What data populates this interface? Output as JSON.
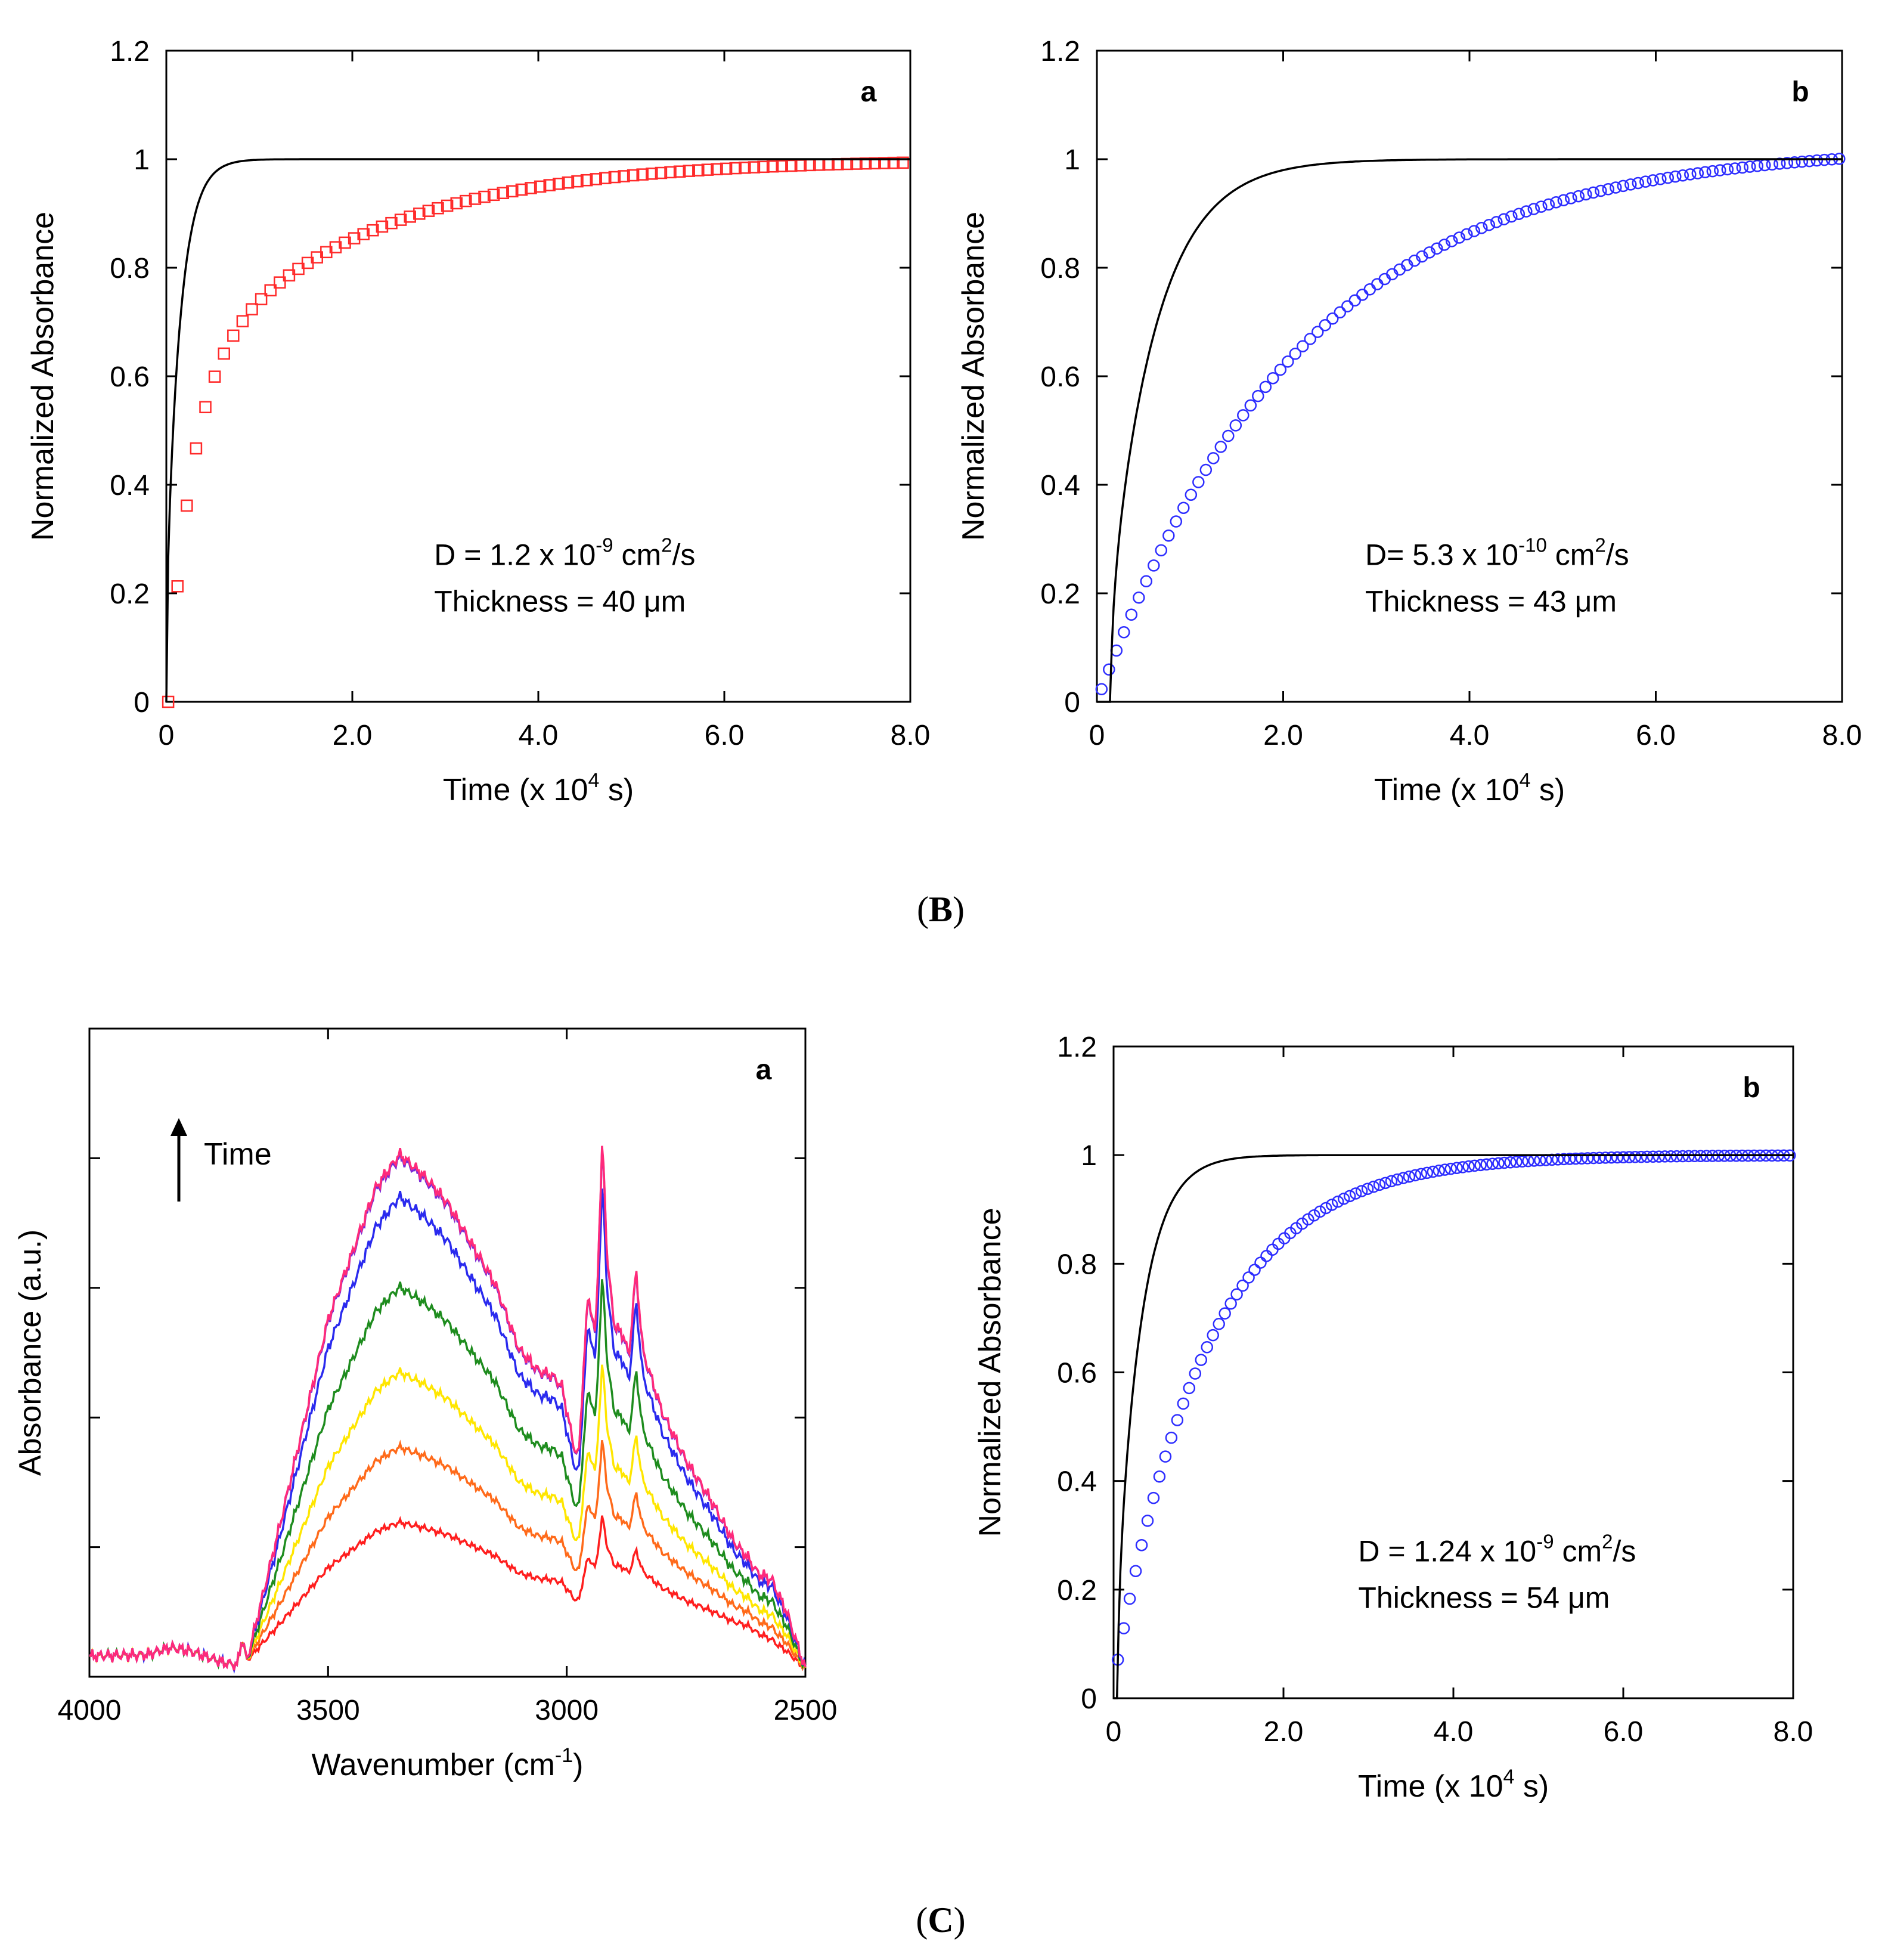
{
  "figure": {
    "captions": [
      "(B)",
      "(C)"
    ],
    "caption_parts": [
      {
        "open": "(",
        "letter": "B",
        "close": ")"
      },
      {
        "open": "(",
        "letter": "C",
        "close": ")"
      }
    ]
  },
  "chart_data": [
    {
      "id": "B-a",
      "type": "scatter",
      "panel_label": "a",
      "xlabel": "Time (x 10",
      "xlabel_exp": "4",
      "xlabel_tail": " s)",
      "ylabel": "Normalized Absorbance",
      "xlim": [
        0,
        8
      ],
      "ylim": [
        0,
        1.2
      ],
      "x_ticks": [
        0,
        2,
        4,
        6,
        8
      ],
      "x_tick_labels": [
        "0",
        "2.0",
        "4.0",
        "6.0",
        "8.0"
      ],
      "y_ticks": [
        0,
        0.2,
        0.4,
        0.6,
        0.8,
        1,
        1.2
      ],
      "y_tick_labels": [
        "0",
        "0.2",
        "0.4",
        "0.6",
        "0.8",
        "1",
        "1.2"
      ],
      "annotation": {
        "line1_pre": "D = 1.2 x 10",
        "line1_exp1": "-9",
        "line1_mid": " cm",
        "line1_exp2": "2",
        "line1_post": "/s",
        "line2": "Thickness = 40 μm"
      },
      "series": [
        {
          "name": "data",
          "kind": "markers",
          "marker": "square",
          "color": "#ff2a2a",
          "model": {
            "form": "biexp",
            "a": 0.58,
            "k1": 4.0,
            "k2": 0.53,
            "lag": 0.02,
            "tail": 0.007
          },
          "x_start": 0.02,
          "x_end": 8.0,
          "dx": 0.1
        },
        {
          "name": "fit",
          "kind": "line",
          "color": "#000000",
          "model": {
            "form": "sigmoid",
            "D": 0.85,
            "lag": 0.0,
            "n": 3.2
          }
        }
      ]
    },
    {
      "id": "B-b",
      "type": "scatter",
      "panel_label": "b",
      "xlabel": "Time (x 10",
      "xlabel_exp": "4",
      "xlabel_tail": " s)",
      "ylabel": "Normalized Absorbance",
      "xlim": [
        0,
        8
      ],
      "ylim": [
        0,
        1.2
      ],
      "x_ticks": [
        0,
        2,
        4,
        6,
        8
      ],
      "x_tick_labels": [
        "0",
        "2.0",
        "4.0",
        "6.0",
        "8.0"
      ],
      "y_ticks": [
        0,
        0.2,
        0.4,
        0.6,
        0.8,
        1,
        1.2
      ],
      "y_tick_labels": [
        "0",
        "0.2",
        "0.4",
        "0.6",
        "0.8",
        "1",
        "1.2"
      ],
      "annotation": {
        "line1_pre": "D= 5.3 x 10",
        "line1_exp1": "-10",
        "line1_mid": " cm",
        "line1_exp2": "2",
        "line1_post": "/s",
        "line2": "Thickness = 43 μm"
      },
      "series": [
        {
          "name": "data",
          "kind": "markers",
          "marker": "circle",
          "color": "#2d2dff",
          "model": {
            "form": "exp",
            "k": 0.46,
            "lag": 0.0,
            "scale": 1.027
          },
          "x_start": 0.05,
          "x_end": 8.0,
          "dx": 0.08
        },
        {
          "name": "fit",
          "kind": "line",
          "color": "#000000",
          "model": {
            "form": "sigmoid",
            "D": 0.27,
            "lag": 0.15,
            "n": 3.0
          }
        }
      ]
    },
    {
      "id": "C-a",
      "type": "line",
      "panel_label": "a",
      "xlabel": "Wavenumber (cm",
      "xlabel_exp": "-1",
      "xlabel_tail": ")",
      "ylabel": "Absorbance (a.u.)",
      "xlim": [
        4000,
        2500
      ],
      "ylim": [
        0,
        1.0
      ],
      "x_ticks": [
        4000,
        3500,
        3000,
        2500
      ],
      "x_tick_labels": [
        "4000",
        "3500",
        "3000",
        "2500"
      ],
      "y_ticks": [
        0.2,
        0.4,
        0.6,
        0.8
      ],
      "y_tick_labels": [],
      "arrow_label": "Time",
      "series": [
        {
          "name": "t1",
          "color": "#ff1e1e",
          "scale": 0.27
        },
        {
          "name": "t2",
          "color": "#ff6a1a",
          "scale": 0.42
        },
        {
          "name": "t3",
          "color": "#ffe600",
          "scale": 0.57
        },
        {
          "name": "t4",
          "color": "#1e8c1e",
          "scale": 0.74
        },
        {
          "name": "t5",
          "color": "#2a2aee",
          "scale": 0.92
        },
        {
          "name": "t6",
          "color": "#7a2ad8",
          "scale": 1.0
        },
        {
          "name": "t7",
          "color": "#ff2a7a",
          "scale": 1.005
        }
      ],
      "spectrum_shape": {
        "baseline": [
          [
            4000,
            0.032
          ],
          [
            3880,
            0.034
          ],
          [
            3830,
            0.045
          ],
          [
            3790,
            0.04
          ],
          [
            3720,
            0.022
          ],
          [
            3690,
            0.018
          ],
          [
            3680,
            0.06
          ],
          [
            3670,
            0.025
          ],
          [
            2620,
            0.04
          ],
          [
            2560,
            0.02
          ],
          [
            2500,
            0.012
          ]
        ],
        "growth": [
          [
            4000,
            0.0
          ],
          [
            3720,
            0.0
          ],
          [
            3670,
            0.0
          ],
          [
            3600,
            0.25
          ],
          [
            3500,
            0.62
          ],
          [
            3400,
            0.86
          ],
          [
            3350,
            0.92
          ],
          [
            3300,
            0.88
          ],
          [
            3250,
            0.83
          ],
          [
            3150,
            0.68
          ],
          [
            3100,
            0.56
          ],
          [
            3060,
            0.52
          ],
          [
            3030,
            0.51
          ],
          [
            3010,
            0.49
          ],
          [
            2985,
            0.38
          ],
          [
            2975,
            0.36
          ],
          [
            2965,
            0.52
          ],
          [
            2955,
            0.66
          ],
          [
            2940,
            0.58
          ],
          [
            2925,
            0.94
          ],
          [
            2915,
            0.72
          ],
          [
            2900,
            0.6
          ],
          [
            2880,
            0.58
          ],
          [
            2870,
            0.54
          ],
          [
            2855,
            0.7
          ],
          [
            2840,
            0.55
          ],
          [
            2800,
            0.44
          ],
          [
            2750,
            0.35
          ],
          [
            2700,
            0.28
          ],
          [
            2650,
            0.2
          ],
          [
            2600,
            0.15
          ],
          [
            2570,
            0.15
          ],
          [
            2540,
            0.1
          ],
          [
            2500,
            0.0
          ]
        ]
      }
    },
    {
      "id": "C-b",
      "type": "scatter",
      "panel_label": "b",
      "xlabel": "Time (x 10",
      "xlabel_exp": "4",
      "xlabel_tail": " s)",
      "ylabel": "Normalized Absorbance",
      "xlim": [
        0,
        8
      ],
      "ylim": [
        0,
        1.2
      ],
      "x_ticks": [
        0,
        2,
        4,
        6,
        8
      ],
      "x_tick_labels": [
        "0",
        "2.0",
        "4.0",
        "6.0",
        "8.0"
      ],
      "y_ticks": [
        0,
        0.2,
        0.4,
        0.6,
        0.8,
        1,
        1.2
      ],
      "y_tick_labels": [
        "0",
        "0.2",
        "0.4",
        "0.6",
        "0.8",
        "1",
        "1.2"
      ],
      "annotation": {
        "line1_pre": "D = 1.24 x 10",
        "line1_exp1": "-9",
        "line1_mid": " cm",
        "line1_exp2": "2",
        "line1_post": "/s",
        "line2": "Thickness = 54 μm"
      },
      "series": [
        {
          "name": "data",
          "kind": "markers",
          "marker": "circle",
          "color": "#2d2dff",
          "model": {
            "form": "exp",
            "k": 0.92,
            "lag": -0.03,
            "scale": 1.0
          },
          "x_start": 0.05,
          "x_end": 8.0,
          "dx": 0.07
        },
        {
          "name": "fit",
          "kind": "line",
          "color": "#000000",
          "model": {
            "form": "sigmoid",
            "D": 0.55,
            "lag": 0.05,
            "n": 2.6
          }
        }
      ]
    }
  ]
}
